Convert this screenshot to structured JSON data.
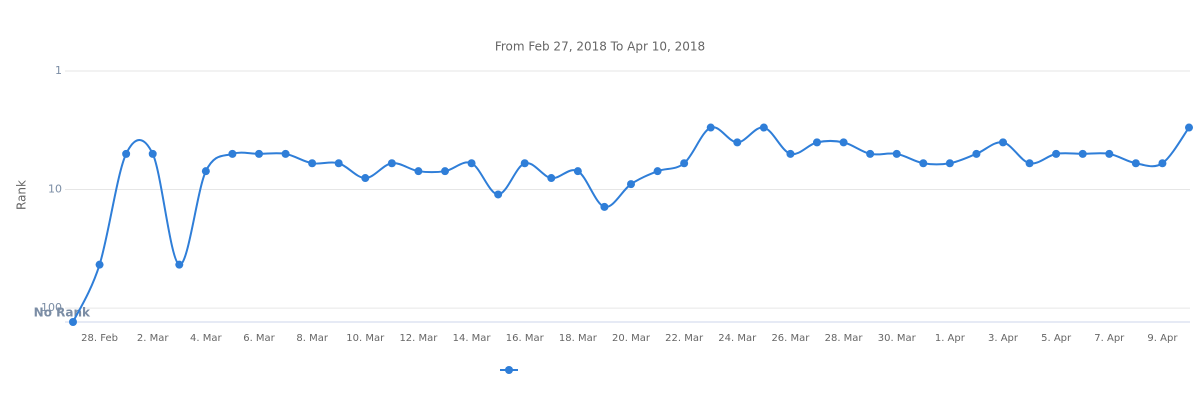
{
  "chart_data": {
    "type": "line",
    "title": "From Feb 27, 2018 To Apr 10, 2018",
    "y_label": "Rank",
    "categories": [
      null,
      "28. Feb",
      null,
      "2. Mar",
      null,
      "4. Mar",
      null,
      "6. Mar",
      null,
      "8. Mar",
      null,
      "10. Mar",
      null,
      "12. Mar",
      null,
      "14. Mar",
      null,
      "16. Mar",
      null,
      "18. Mar",
      null,
      "20. Mar",
      null,
      "22. Mar",
      null,
      "24. Mar",
      null,
      "26. Mar",
      null,
      "28. Mar",
      null,
      "30. Mar",
      null,
      "1. Apr",
      null,
      "3. Apr",
      null,
      "5. Apr",
      null,
      "7. Apr",
      null,
      "9. Apr",
      null
    ],
    "series": [
      {
        "color": "#2f7ed8",
        "values": [
          131,
          43,
          5,
          5,
          43,
          7,
          5,
          5,
          5,
          6,
          6,
          8,
          6,
          7,
          7,
          6,
          11,
          6,
          8,
          7,
          14,
          9,
          7,
          6,
          3,
          4,
          3,
          5,
          4,
          4,
          5,
          5,
          6,
          6,
          5,
          4,
          6,
          5,
          5,
          5,
          6,
          6,
          3
        ]
      }
    ],
    "log_scale": true,
    "reversed": true,
    "ylim": [
      1,
      131
    ],
    "yticks": [
      1,
      10,
      100,
      {
        "value": 131,
        "label": "No Rank"
      }
    ],
    "grid": true,
    "legend": "bottom"
  }
}
